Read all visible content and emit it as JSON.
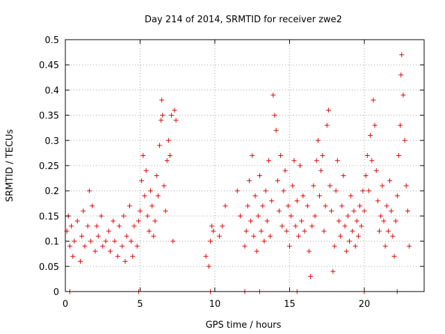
{
  "chart_data": {
    "type": "scatter",
    "title": "Day 214 of 2014, SRMTID for receiver zwe2",
    "xlabel": "GPS time / hours",
    "ylabel": "SRMTID / TECUs",
    "xlim": [
      0,
      24
    ],
    "ylim": [
      0,
      0.5
    ],
    "xticks": [
      0,
      5,
      10,
      15,
      20
    ],
    "yticks": [
      0,
      0.05,
      0.1,
      0.15,
      0.2,
      0.25,
      0.3,
      0.35,
      0.4,
      0.45,
      0.5
    ],
    "ytick_labels": [
      "0",
      "0.05",
      "0.1",
      "0.15",
      "0.2",
      "0.25",
      "0.3",
      "0.35",
      "0.4",
      "0.45",
      "0.5"
    ],
    "xtick_labels": [
      "0",
      "5",
      "10",
      "15",
      "20"
    ],
    "grid": true,
    "marker": "+",
    "color": "#e00000",
    "series": [
      {
        "name": "SRMTID",
        "points": [
          [
            0.1,
            0.12
          ],
          [
            0.2,
            0.15
          ],
          [
            0.3,
            0.09
          ],
          [
            0.4,
            0.13
          ],
          [
            0.5,
            0.07
          ],
          [
            0.6,
            0.1
          ],
          [
            0.8,
            0.14
          ],
          [
            1.0,
            0.06
          ],
          [
            1.1,
            0.11
          ],
          [
            1.2,
            0.16
          ],
          [
            1.3,
            0.09
          ],
          [
            1.5,
            0.13
          ],
          [
            1.6,
            0.2
          ],
          [
            1.7,
            0.1
          ],
          [
            1.8,
            0.17
          ],
          [
            2.0,
            0.08
          ],
          [
            2.1,
            0.13
          ],
          [
            2.2,
            0.11
          ],
          [
            2.4,
            0.15
          ],
          [
            2.5,
            0.09
          ],
          [
            2.7,
            0.1
          ],
          [
            2.9,
            0.12
          ],
          [
            3.0,
            0.08
          ],
          [
            3.2,
            0.14
          ],
          [
            3.3,
            0.1
          ],
          [
            3.5,
            0.07
          ],
          [
            3.6,
            0.13
          ],
          [
            3.8,
            0.09
          ],
          [
            3.9,
            0.15
          ],
          [
            4.0,
            0.06
          ],
          [
            4.1,
            0.11
          ],
          [
            4.3,
            0.17
          ],
          [
            4.4,
            0.1
          ],
          [
            4.5,
            0.07
          ],
          [
            4.6,
            0.13
          ],
          [
            4.8,
            0.09
          ],
          [
            4.9,
            0.14
          ],
          [
            5.0,
            0.16
          ],
          [
            5.1,
            0.22
          ],
          [
            5.2,
            0.27
          ],
          [
            5.3,
            0.19
          ],
          [
            5.4,
            0.24
          ],
          [
            5.5,
            0.15
          ],
          [
            5.6,
            0.12
          ],
          [
            5.7,
            0.2
          ],
          [
            5.8,
            0.17
          ],
          [
            5.9,
            0.11
          ],
          [
            6.0,
            0.14
          ],
          [
            6.1,
            0.23
          ],
          [
            6.2,
            0.19
          ],
          [
            6.3,
            0.29
          ],
          [
            6.4,
            0.34
          ],
          [
            6.45,
            0.38
          ],
          [
            6.5,
            0.35
          ],
          [
            6.6,
            0.21
          ],
          [
            6.7,
            0.16
          ],
          [
            6.8,
            0.26
          ],
          [
            6.9,
            0.3
          ],
          [
            7.0,
            0.27
          ],
          [
            7.1,
            0.35
          ],
          [
            7.2,
            0.1
          ],
          [
            7.3,
            0.36
          ],
          [
            7.4,
            0.34
          ],
          [
            9.4,
            0.07
          ],
          [
            9.6,
            0.05
          ],
          [
            9.7,
            0.1
          ],
          [
            9.8,
            0.13
          ],
          [
            9.9,
            0.12
          ],
          [
            10.3,
            0.11
          ],
          [
            10.5,
            0.13
          ],
          [
            10.7,
            0.17
          ],
          [
            11.5,
            0.2
          ],
          [
            11.7,
            0.15
          ],
          [
            12.0,
            0.09
          ],
          [
            12.1,
            0.12
          ],
          [
            12.2,
            0.17
          ],
          [
            12.3,
            0.22
          ],
          [
            12.4,
            0.14
          ],
          [
            12.5,
            0.27
          ],
          [
            12.6,
            0.11
          ],
          [
            12.7,
            0.19
          ],
          [
            12.8,
            0.08
          ],
          [
            12.9,
            0.15
          ],
          [
            13.0,
            0.23
          ],
          [
            13.1,
            0.12
          ],
          [
            13.2,
            0.17
          ],
          [
            13.3,
            0.1
          ],
          [
            13.4,
            0.2
          ],
          [
            13.5,
            0.14
          ],
          [
            13.6,
            0.26
          ],
          [
            13.7,
            0.11
          ],
          [
            13.8,
            0.18
          ],
          [
            13.9,
            0.39
          ],
          [
            14.0,
            0.35
          ],
          [
            14.1,
            0.32
          ],
          [
            14.2,
            0.22
          ],
          [
            14.3,
            0.16
          ],
          [
            14.4,
            0.27
          ],
          [
            14.5,
            0.13
          ],
          [
            14.6,
            0.2
          ],
          [
            14.7,
            0.24
          ],
          [
            14.8,
            0.12
          ],
          [
            14.9,
            0.17
          ],
          [
            15.0,
            0.09
          ],
          [
            15.1,
            0.15
          ],
          [
            15.2,
            0.21
          ],
          [
            15.3,
            0.26
          ],
          [
            15.4,
            0.13
          ],
          [
            15.5,
            0.18
          ],
          [
            15.6,
            0.11
          ],
          [
            15.7,
            0.25
          ],
          [
            15.8,
            0.14
          ],
          [
            15.9,
            0.19
          ],
          [
            16.0,
            0.12
          ],
          [
            16.2,
            0.17
          ],
          [
            16.3,
            0.08
          ],
          [
            16.4,
            0.03
          ],
          [
            16.5,
            0.13
          ],
          [
            16.6,
            0.21
          ],
          [
            16.7,
            0.15
          ],
          [
            16.8,
            0.26
          ],
          [
            16.9,
            0.3
          ],
          [
            17.0,
            0.19
          ],
          [
            17.1,
            0.24
          ],
          [
            17.2,
            0.27
          ],
          [
            17.3,
            0.12
          ],
          [
            17.4,
            0.17
          ],
          [
            17.5,
            0.33
          ],
          [
            17.6,
            0.36
          ],
          [
            17.7,
            0.21
          ],
          [
            17.8,
            0.16
          ],
          [
            17.9,
            0.04
          ],
          [
            18.0,
            0.09
          ],
          [
            18.1,
            0.2
          ],
          [
            18.2,
            0.26
          ],
          [
            18.3,
            0.14
          ],
          [
            18.4,
            0.11
          ],
          [
            18.5,
            0.17
          ],
          [
            18.6,
            0.23
          ],
          [
            18.7,
            0.13
          ],
          [
            18.8,
            0.08
          ],
          [
            18.9,
            0.15
          ],
          [
            19.0,
            0.1
          ],
          [
            19.1,
            0.19
          ],
          [
            19.2,
            0.12
          ],
          [
            19.3,
            0.16
          ],
          [
            19.4,
            0.09
          ],
          [
            19.5,
            0.14
          ],
          [
            19.6,
            0.11
          ],
          [
            19.7,
            0.17
          ],
          [
            19.8,
            0.13
          ],
          [
            19.9,
            0.2
          ],
          [
            20.0,
            0.16
          ],
          [
            20.1,
            0.23
          ],
          [
            20.2,
            0.27
          ],
          [
            20.3,
            0.2
          ],
          [
            20.4,
            0.31
          ],
          [
            20.5,
            0.26
          ],
          [
            20.6,
            0.38
          ],
          [
            20.7,
            0.33
          ],
          [
            20.8,
            0.24
          ],
          [
            20.9,
            0.18
          ],
          [
            21.0,
            0.12
          ],
          [
            21.1,
            0.15
          ],
          [
            21.2,
            0.21
          ],
          [
            21.3,
            0.14
          ],
          [
            21.4,
            0.09
          ],
          [
            21.5,
            0.17
          ],
          [
            21.6,
            0.12
          ],
          [
            21.7,
            0.22
          ],
          [
            21.8,
            0.16
          ],
          [
            21.9,
            0.11
          ],
          [
            22.0,
            0.07
          ],
          [
            22.1,
            0.14
          ],
          [
            22.2,
            0.19
          ],
          [
            22.3,
            0.27
          ],
          [
            22.4,
            0.33
          ],
          [
            22.45,
            0.43
          ],
          [
            22.5,
            0.47
          ],
          [
            22.6,
            0.39
          ],
          [
            22.7,
            0.3
          ],
          [
            22.8,
            0.21
          ],
          [
            22.9,
            0.16
          ],
          [
            23.0,
            0.09
          ]
        ],
        "zero_points": [
          0.3,
          4.9,
          9.7,
          12.0,
          13.0,
          15.5,
          20.0,
          22.2
        ]
      }
    ]
  }
}
